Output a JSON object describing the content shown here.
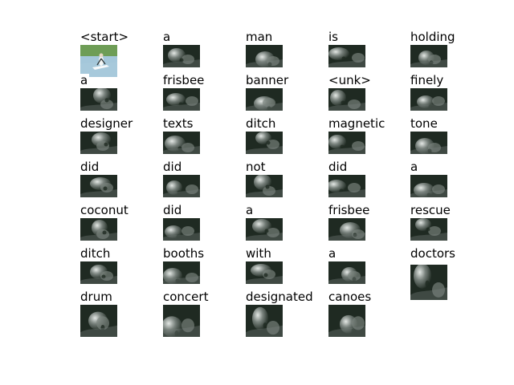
{
  "figure": {
    "cells": [
      {
        "word": "<start>",
        "thumb": "source-image"
      },
      {
        "word": "a",
        "thumb": "attention-map"
      },
      {
        "word": "man",
        "thumb": "attention-map"
      },
      {
        "word": "is",
        "thumb": "attention-map"
      },
      {
        "word": "holding",
        "thumb": "attention-map"
      },
      {
        "word": "a",
        "thumb": "attention-map"
      },
      {
        "word": "frisbee",
        "thumb": "attention-map"
      },
      {
        "word": "banner",
        "thumb": "attention-map"
      },
      {
        "word": "<unk>",
        "thumb": "attention-map"
      },
      {
        "word": "finely",
        "thumb": "attention-map"
      },
      {
        "word": "designer",
        "thumb": "attention-map"
      },
      {
        "word": "texts",
        "thumb": "attention-map"
      },
      {
        "word": "ditch",
        "thumb": "attention-map"
      },
      {
        "word": "magnetic",
        "thumb": "attention-map"
      },
      {
        "word": "tone",
        "thumb": "attention-map"
      },
      {
        "word": "did",
        "thumb": "attention-map"
      },
      {
        "word": "did",
        "thumb": "attention-map"
      },
      {
        "word": "not",
        "thumb": "attention-map"
      },
      {
        "word": "did",
        "thumb": "attention-map"
      },
      {
        "word": "a",
        "thumb": "attention-map"
      },
      {
        "word": "coconut",
        "thumb": "attention-map"
      },
      {
        "word": "did",
        "thumb": "attention-map"
      },
      {
        "word": "a",
        "thumb": "attention-map"
      },
      {
        "word": "frisbee",
        "thumb": "attention-map"
      },
      {
        "word": "rescue",
        "thumb": "attention-map"
      },
      {
        "word": "ditch",
        "thumb": "attention-map"
      },
      {
        "word": "booths",
        "thumb": "attention-map"
      },
      {
        "word": "with",
        "thumb": "attention-map"
      },
      {
        "word": "a",
        "thumb": "attention-map"
      },
      {
        "word": "doctors",
        "thumb": "attention-map"
      },
      {
        "word": "drum",
        "thumb": "attention-map"
      },
      {
        "word": "concert",
        "thumb": "attention-map"
      },
      {
        "word": "designated",
        "thumb": "attention-map"
      },
      {
        "word": "canoes",
        "thumb": "attention-map"
      }
    ]
  },
  "colors": {
    "background": "#ffffff",
    "text": "#000000",
    "thumb_dark": "#1f2a22",
    "thumb_mid": "#7c8580",
    "thumb_light": "#eef2ef",
    "water_blue": "#78a7c7",
    "grass_green": "#6e9d56"
  }
}
